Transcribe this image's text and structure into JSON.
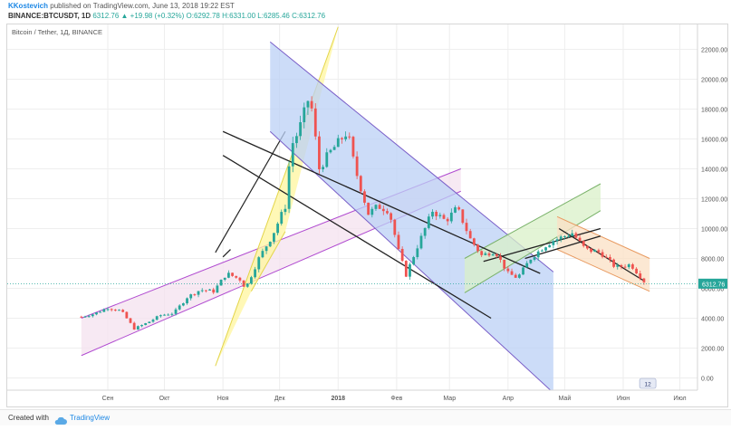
{
  "header": {
    "author": "KKostevich",
    "published": "published on TradingView.com, June 13, 2018 19:22 EST",
    "symbol": "BINANCE:BTCUSDT, 1D",
    "last": "6312.76",
    "change": "▲ +19.98 (+0.32%)",
    "o": "O:6292.78",
    "h": "H:6331.00",
    "l": "L:6285.46",
    "c": "C:6312.76"
  },
  "footer": {
    "created": "Created with",
    "brand": "TradingView",
    "cloud_icon": "cloud-icon"
  },
  "colors": {
    "up": "#26a69a",
    "down": "#ef5350",
    "yellow": "#fff59d",
    "blue": "#bbd0f5",
    "pink": "#f4e2ef",
    "green": "#d9f0c8",
    "orange": "#fbe0c4",
    "dark_line": "#222222"
  },
  "chart_data": {
    "type": "candlestick",
    "title": "Bitcoin / Tether, 1Д, BINANCE",
    "y_ticks": [
      0,
      2000,
      4000,
      6000,
      8000,
      10000,
      12000,
      14000,
      16000,
      18000,
      20000,
      22000
    ],
    "y_tick_labels": [
      "0.00",
      "2000.00",
      "4000.00",
      "6000.00",
      "8000.00",
      "10000.00",
      "12000.00",
      "14000.00",
      "16000.00",
      "18000.00",
      "20000.00",
      "22000.00"
    ],
    "x_tick_labels": [
      "Сен",
      "Окт",
      "Ноя",
      "Дек",
      "2018",
      "Фев",
      "Мар",
      "Апр",
      "Май",
      "Июн",
      "Июл"
    ],
    "x_tick_dates": [
      "2017-09-01",
      "2017-10-01",
      "2017-11-01",
      "2017-12-01",
      "2018-01-01",
      "2018-02-01",
      "2018-03-01",
      "2018-04-01",
      "2018-05-01",
      "2018-06-01",
      "2018-07-01"
    ],
    "ylim": [
      -1000,
      23500
    ],
    "last_price_label": "6312.76",
    "badge_label": "12",
    "price_path": [
      [
        "2017-08-18",
        4100
      ],
      [
        "2017-08-25",
        4300
      ],
      [
        "2017-09-01",
        4700
      ],
      [
        "2017-09-08",
        4500
      ],
      [
        "2017-09-15",
        3300
      ],
      [
        "2017-09-22",
        3700
      ],
      [
        "2017-09-29",
        4200
      ],
      [
        "2017-10-06",
        4350
      ],
      [
        "2017-10-13",
        5400
      ],
      [
        "2017-10-20",
        5900
      ],
      [
        "2017-10-27",
        5800
      ],
      [
        "2017-11-03",
        7000
      ],
      [
        "2017-11-10",
        6600
      ],
      [
        "2017-11-13",
        6000
      ],
      [
        "2017-11-20",
        8000
      ],
      [
        "2017-11-27",
        9500
      ],
      [
        "2017-12-04",
        11500
      ],
      [
        "2017-12-07",
        15500
      ],
      [
        "2017-12-11",
        16500
      ],
      [
        "2017-12-17",
        19000
      ],
      [
        "2017-12-22",
        14000
      ],
      [
        "2017-12-27",
        15000
      ],
      [
        "2018-01-06",
        16500
      ],
      [
        "2018-01-10",
        14000
      ],
      [
        "2018-01-17",
        11000
      ],
      [
        "2018-01-22",
        11500
      ],
      [
        "2018-01-28",
        11200
      ],
      [
        "2018-02-02",
        8500
      ],
      [
        "2018-02-06",
        6900
      ],
      [
        "2018-02-12",
        8800
      ],
      [
        "2018-02-20",
        11200
      ],
      [
        "2018-02-27",
        10500
      ],
      [
        "2018-03-05",
        11400
      ],
      [
        "2018-03-12",
        9300
      ],
      [
        "2018-03-18",
        8200
      ],
      [
        "2018-03-25",
        8500
      ],
      [
        "2018-04-01",
        7000
      ],
      [
        "2018-04-06",
        6700
      ],
      [
        "2018-04-13",
        8000
      ],
      [
        "2018-04-20",
        8800
      ],
      [
        "2018-04-25",
        9200
      ],
      [
        "2018-05-05",
        9700
      ],
      [
        "2018-05-12",
        8600
      ],
      [
        "2018-05-20",
        8400
      ],
      [
        "2018-05-28",
        7400
      ],
      [
        "2018-06-05",
        7600
      ],
      [
        "2018-06-10",
        6800
      ],
      [
        "2018-06-13",
        6312.76
      ]
    ],
    "channels": [
      {
        "name": "pink",
        "a": [
          [
            "2017-08-18",
            1500
          ],
          [
            "2018-03-07",
            12500
          ]
        ],
        "b": [
          [
            "2017-08-18",
            4000
          ],
          [
            "2018-03-07",
            14000
          ]
        ]
      },
      {
        "name": "yellow",
        "a": [
          [
            "2017-10-28",
            800
          ],
          [
            "2018-01-01",
            23500
          ]
        ],
        "b": [
          [
            "2017-11-16",
            5800
          ],
          [
            "2017-12-04",
            9800
          ]
        ],
        "c": [
          [
            "2017-10-28",
            8400
          ],
          [
            "2017-12-04",
            16500
          ]
        ]
      },
      {
        "name": "blue",
        "a": [
          [
            "2017-11-26",
            22500
          ],
          [
            "2018-04-25",
            7100
          ]
        ],
        "b": [
          [
            "2017-11-26",
            16500
          ],
          [
            "2018-04-25",
            -1000
          ]
        ]
      },
      {
        "name": "green",
        "a": [
          [
            "2018-03-09",
            5700
          ],
          [
            "2018-05-20",
            11200
          ]
        ],
        "b": [
          [
            "2018-03-09",
            8000
          ],
          [
            "2018-05-20",
            13000
          ]
        ]
      },
      {
        "name": "orange",
        "a": [
          [
            "2018-04-27",
            8600
          ],
          [
            "2018-06-15",
            5800
          ]
        ],
        "b": [
          [
            "2018-04-27",
            10800
          ],
          [
            "2018-06-15",
            8000
          ]
        ]
      }
    ],
    "dark_lines": [
      [
        [
          "2017-11-01",
          14900
        ],
        [
          "2018-03-23",
          4000
        ]
      ],
      [
        [
          "2017-11-01",
          16500
        ],
        [
          "2018-04-18",
          7000
        ]
      ],
      [
        [
          "2018-03-19",
          7800
        ],
        [
          "2018-05-20",
          10000
        ]
      ],
      [
        [
          "2018-04-10",
          8000
        ],
        [
          "2018-05-20",
          9500
        ]
      ],
      [
        [
          "2017-11-01",
          8100
        ],
        [
          "2017-11-05",
          8600
        ]
      ],
      [
        [
          "2018-04-28",
          10000
        ],
        [
          "2018-06-12",
          6500
        ]
      ]
    ]
  }
}
